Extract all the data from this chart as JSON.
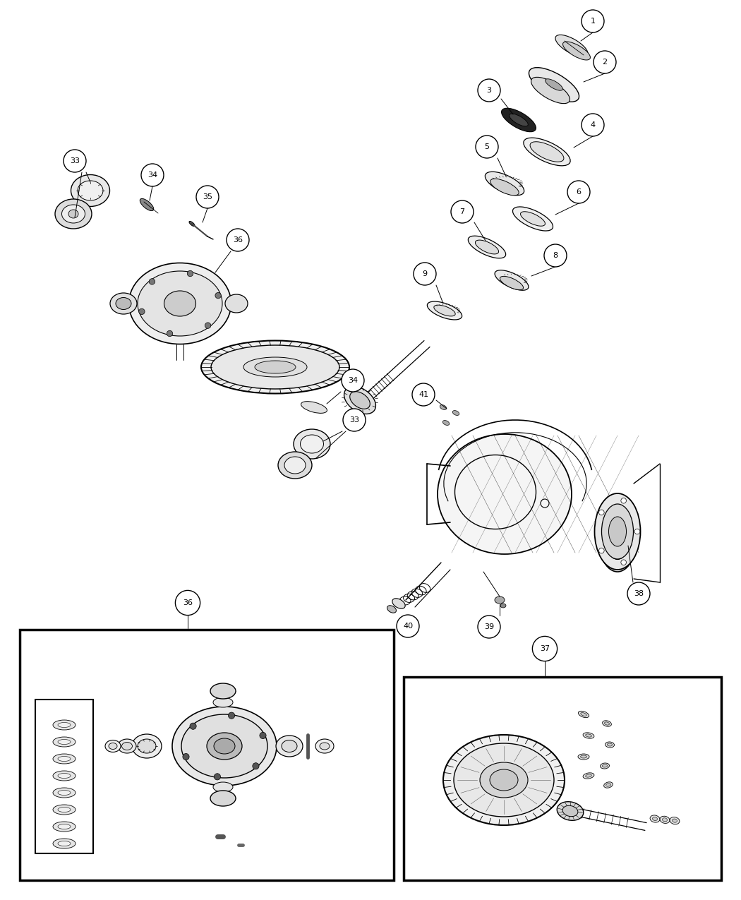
{
  "bg_color": "#ffffff",
  "fig_width": 10.5,
  "fig_height": 12.75,
  "dpi": 100,
  "cr": 0.16,
  "fs": 8,
  "fs2": 7
}
